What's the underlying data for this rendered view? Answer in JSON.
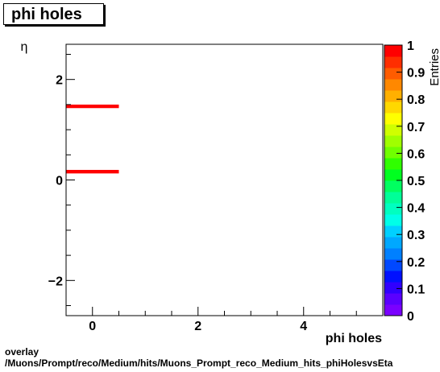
{
  "title": "phi holes",
  "footer": {
    "line1": "overlay",
    "line2": "/Muons/Prompt/reco/Medium/hits/Muons_Prompt_reco_Medium_hits_phiHolesvsEta"
  },
  "chart_data": {
    "type": "heatmap",
    "title": "phi holes",
    "xlabel": "phi holes",
    "ylabel": "η",
    "zlabel": "Entries",
    "xlim": [
      -0.5,
      5.5
    ],
    "ylim": [
      -2.7,
      2.7
    ],
    "zlim": [
      0,
      1
    ],
    "x_ticks": [
      0,
      2,
      4
    ],
    "y_ticks": [
      -2,
      0,
      2
    ],
    "z_ticks": [
      "0",
      "0.1",
      "0.2",
      "0.3",
      "0.4",
      "0.5",
      "0.6",
      "0.7",
      "0.8",
      "0.9",
      "1"
    ],
    "cells": [
      {
        "x0": -0.5,
        "x1": 0.5,
        "y0": 1.43,
        "y1": 1.5,
        "z": 1
      },
      {
        "x0": -0.5,
        "x1": 0.5,
        "y0": 0.13,
        "y1": 0.2,
        "z": 1
      }
    ],
    "palette": [
      "#7a00ff",
      "#5a00ff",
      "#3000ff",
      "#0010ff",
      "#0048ff",
      "#0080ff",
      "#00a8ff",
      "#00d0ff",
      "#00ffe8",
      "#00ffc0",
      "#00ff98",
      "#00ff60",
      "#00ff20",
      "#30ff00",
      "#70ff00",
      "#a0ff00",
      "#d0ff00",
      "#ffff00",
      "#ffd800",
      "#ffb000",
      "#ff8800",
      "#ff5c00",
      "#ff2e00",
      "#ff0000"
    ]
  }
}
